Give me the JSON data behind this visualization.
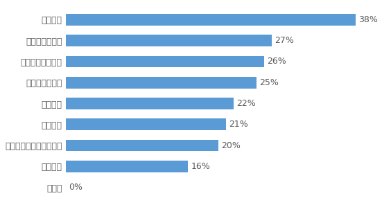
{
  "categories": [
    "その他",
    "気象状況",
    "特定の地域に関する情報",
    "被害状況",
    "避難経路",
    "被災者支援情報",
    "避難所の開設情報",
    "交通・物流情報",
    "特にない"
  ],
  "values": [
    0,
    16,
    20,
    21,
    22,
    25,
    26,
    27,
    38
  ],
  "bar_color": "#5b9bd5",
  "label_color": "#595959",
  "background_color": "#ffffff",
  "grid_color": "#c0c0c0",
  "xlim": [
    0,
    42
  ],
  "bar_height": 0.55,
  "fontsize": 9.0,
  "label_fontsize": 9.0
}
